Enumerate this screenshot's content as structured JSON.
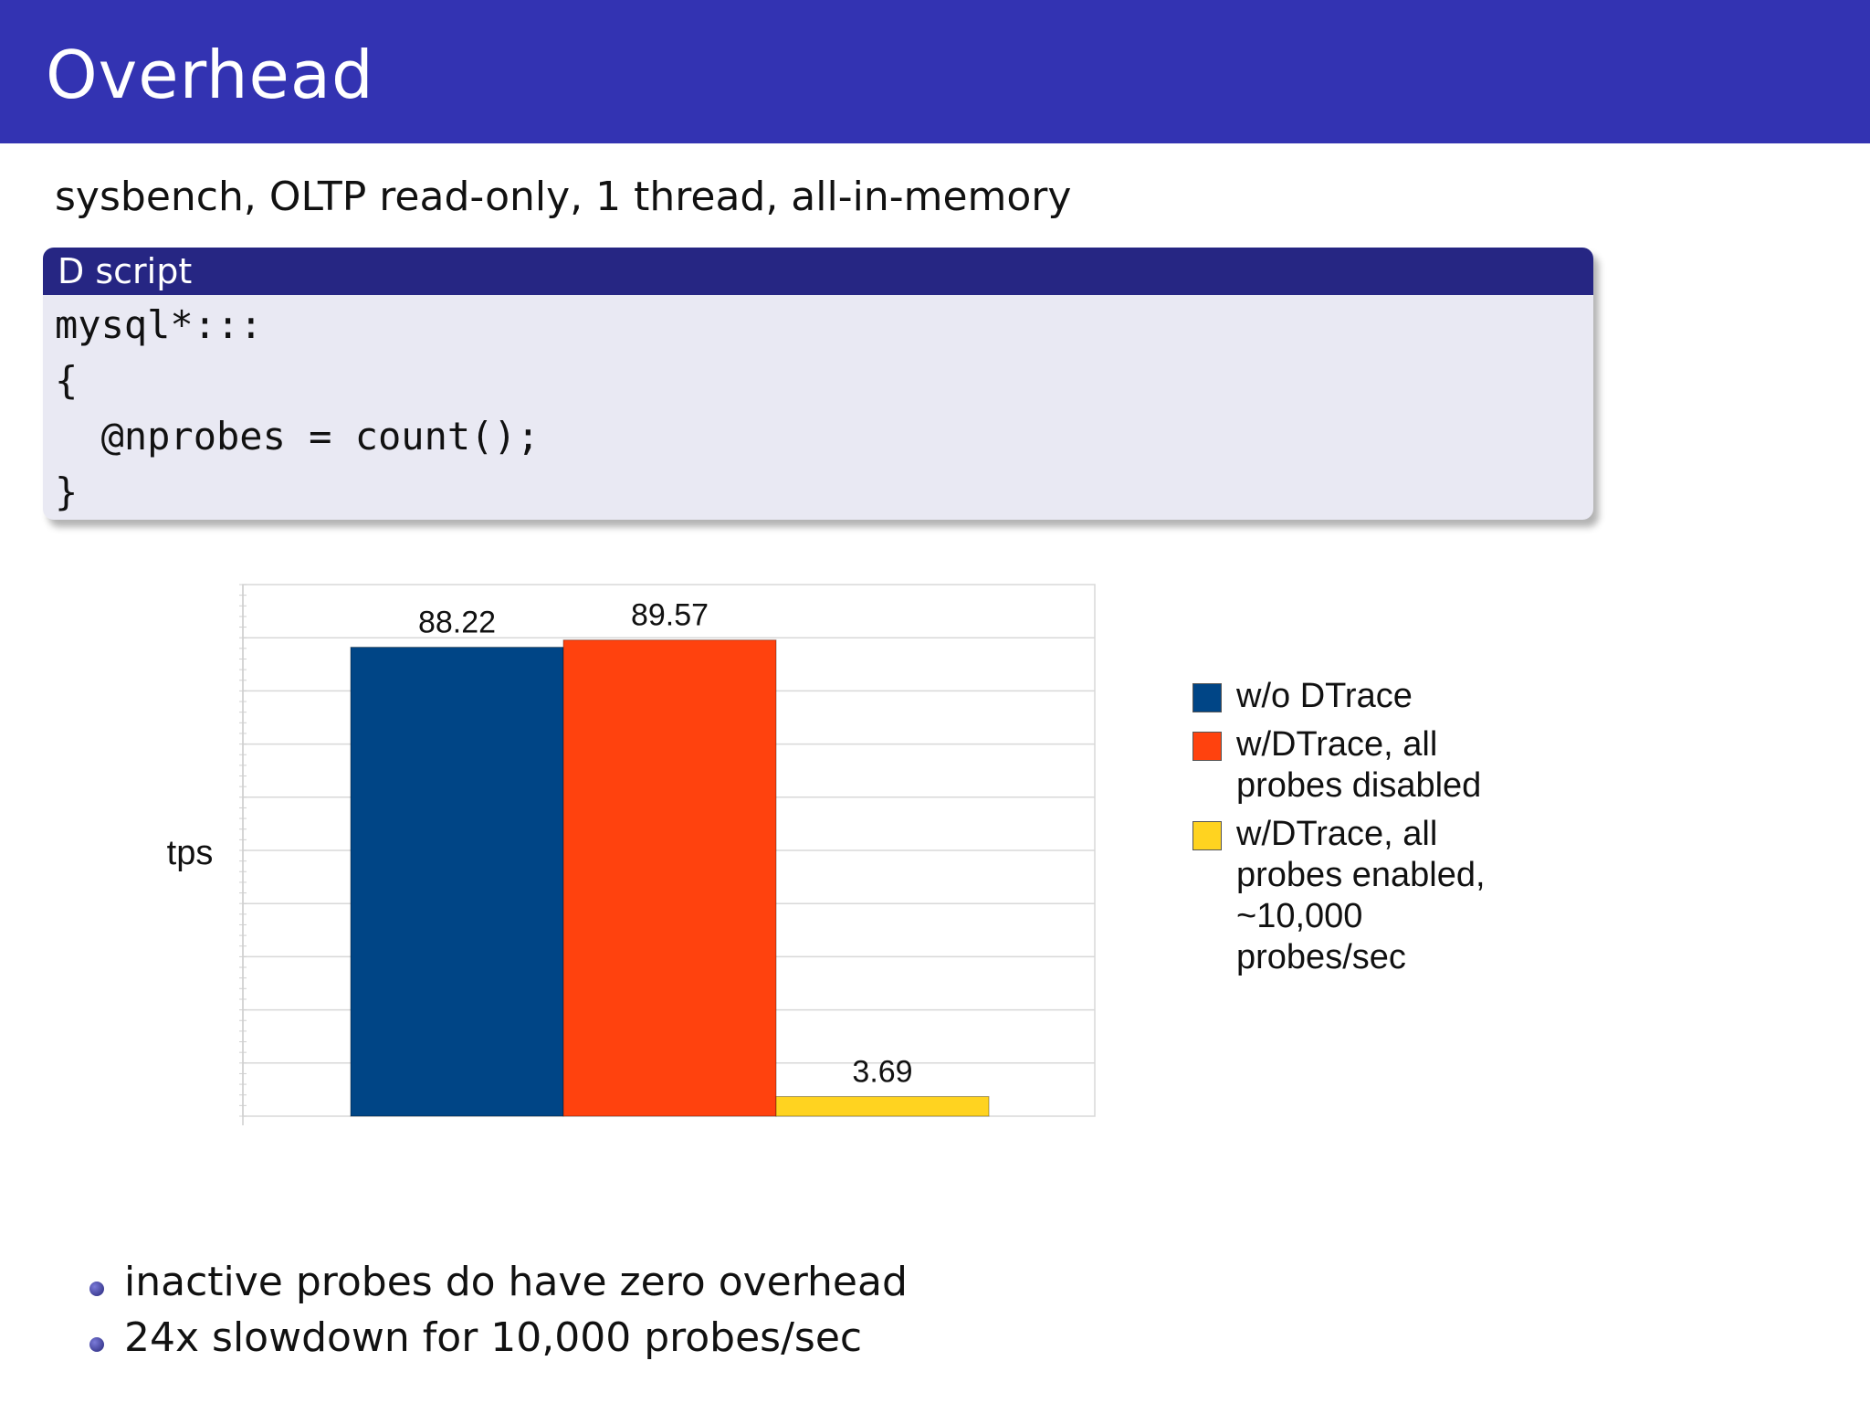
{
  "slide": {
    "title": "Overhead",
    "subtitle": "sysbench, OLTP read-only, 1 thread, all-in-memory"
  },
  "block": {
    "title": "D script",
    "code_lines": [
      "mysql*:::",
      "{",
      "  @nprobes = count();",
      "}"
    ]
  },
  "chart_data": {
    "type": "bar",
    "ylabel": "tps",
    "categories": [
      "w/o DTrace",
      "w/DTrace, all probes disabled",
      "w/DTrace, all probes enabled, ~10,000 probes/sec"
    ],
    "values": [
      88.22,
      89.57,
      3.69
    ],
    "value_labels": [
      "88.22",
      "89.57",
      "3.69"
    ],
    "colors": [
      "#004586",
      "#ff420e",
      "#ffd320"
    ],
    "ylim": [
      0,
      100
    ],
    "gridlines": true,
    "legend_position": "right",
    "legend": [
      {
        "label": "w/o DTrace",
        "lines": [
          "w/o DTrace"
        ],
        "color": "#004586"
      },
      {
        "label": "w/DTrace, all probes disabled",
        "lines": [
          "w/DTrace, all",
          "probes disabled"
        ],
        "color": "#ff420e"
      },
      {
        "label": "w/DTrace, all probes enabled, ~10,000 probes/sec",
        "lines": [
          "w/DTrace, all",
          "probes enabled,",
          "~10,000",
          "probes/sec"
        ],
        "color": "#ffd320"
      }
    ]
  },
  "bullets": [
    "inactive probes do have zero overhead",
    "24x slowdown for 10,000 probes/sec"
  ]
}
